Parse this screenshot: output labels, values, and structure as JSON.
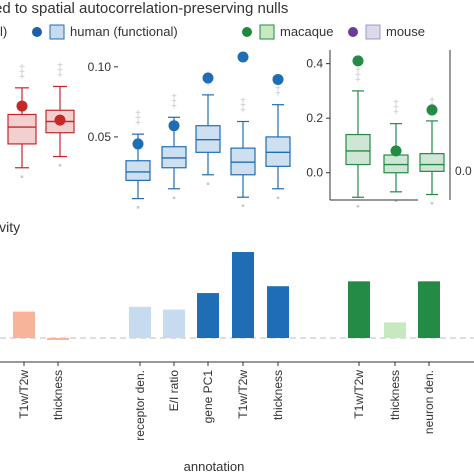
{
  "header": {
    "title": "ed to spatial autocorrelation-preserving nulls",
    "panel_b_label": "ivity"
  },
  "legend": {
    "items": [
      {
        "label": "l)",
        "dot_color": null,
        "box_color": null
      },
      {
        "label": "human (functional)",
        "dot_color": "#1f5fa8",
        "box_color": "#c6dbef"
      },
      {
        "label": "macaque",
        "dot_color": "#1d8a3e",
        "box_color": "#c7e9c0"
      },
      {
        "label": "mouse",
        "dot_color": "#6a3d9a",
        "box_color": "#dadaeb"
      }
    ]
  },
  "colors": {
    "red_dark": "#c62828",
    "red_light": "#f8b49a",
    "blue_dark": "#1f6eb5",
    "blue_light": "#c6dbef",
    "green_dark": "#238b45",
    "green_light": "#c7e9c0",
    "null_points": "#c8c8c8"
  },
  "chart_data": [
    {
      "type": "box",
      "panel": "red",
      "categories": [
        "T1w/T2w",
        "thickness"
      ],
      "color": "#c62828",
      "boxes": [
        {
          "q1": 0.045,
          "median": 0.057,
          "q3": 0.066,
          "whislo": 0.028,
          "whishi": 0.085,
          "observed": 0.072
        },
        {
          "q1": 0.053,
          "median": 0.061,
          "q3": 0.069,
          "whislo": 0.036,
          "whishi": 0.086,
          "observed": 0.062
        }
      ]
    },
    {
      "type": "box",
      "panel": "blue",
      "categories": [
        "receptor den.",
        "E/I ratio",
        "gene PC1",
        "T1w/T2w",
        "thickness"
      ],
      "color": "#1f6eb5",
      "yticks": [
        0.05,
        0.1
      ],
      "ylim": [
        0.005,
        0.112
      ],
      "boxes": [
        {
          "q1": 0.019,
          "median": 0.025,
          "q3": 0.033,
          "whislo": 0.006,
          "whishi": 0.052,
          "observed": 0.045
        },
        {
          "q1": 0.028,
          "median": 0.035,
          "q3": 0.043,
          "whislo": 0.013,
          "whishi": 0.064,
          "observed": 0.058
        },
        {
          "q1": 0.039,
          "median": 0.048,
          "q3": 0.058,
          "whislo": 0.023,
          "whishi": 0.08,
          "observed": 0.092
        },
        {
          "q1": 0.023,
          "median": 0.032,
          "q3": 0.042,
          "whislo": 0.007,
          "whishi": 0.061,
          "observed": 0.107
        },
        {
          "q1": 0.029,
          "median": 0.039,
          "q3": 0.05,
          "whislo": 0.013,
          "whishi": 0.073,
          "observed": 0.091
        }
      ]
    },
    {
      "type": "box",
      "panel": "green-left",
      "categories": [
        "T1w/T2w",
        "thickness",
        "neuron den."
      ],
      "color": "#238b45",
      "yticks": [
        0.0,
        0.2,
        0.4
      ],
      "ylim": [
        -0.1,
        0.45
      ],
      "boxes": [
        {
          "q1": 0.03,
          "median": 0.08,
          "q3": 0.14,
          "whislo": -0.09,
          "whishi": 0.3,
          "observed": 0.41
        },
        {
          "q1": 0.0,
          "median": 0.03,
          "q3": 0.065,
          "whislo": -0.07,
          "whishi": 0.18,
          "observed": 0.08
        },
        {
          "q1": 0.005,
          "median": 0.03,
          "q3": 0.07,
          "whislo": -0.08,
          "whishi": 0.19,
          "observed": 0.23
        }
      ]
    },
    {
      "type": "bar",
      "panel": "bottom",
      "xlabel": "annotation",
      "categories": [
        "T1w/T2w",
        "thickness",
        "receptor den.",
        "E/I ratio",
        "gene PC1",
        "T1w/T2w",
        "thickness",
        "T1w/T2w",
        "thickness",
        "neuron den."
      ],
      "values": [
        0.27,
        -0.02,
        0.32,
        0.29,
        0.46,
        0.88,
        0.53,
        0.58,
        0.16,
        0.58
      ],
      "bar_colors": [
        "#f8b49a",
        "#f8b49a",
        "#c6dbef",
        "#c6dbef",
        "#1f6eb5",
        "#1f6eb5",
        "#1f6eb5",
        "#238b45",
        "#c7e9c0",
        "#238b45"
      ]
    }
  ],
  "partial_tick_labels": [
    "0.0"
  ]
}
